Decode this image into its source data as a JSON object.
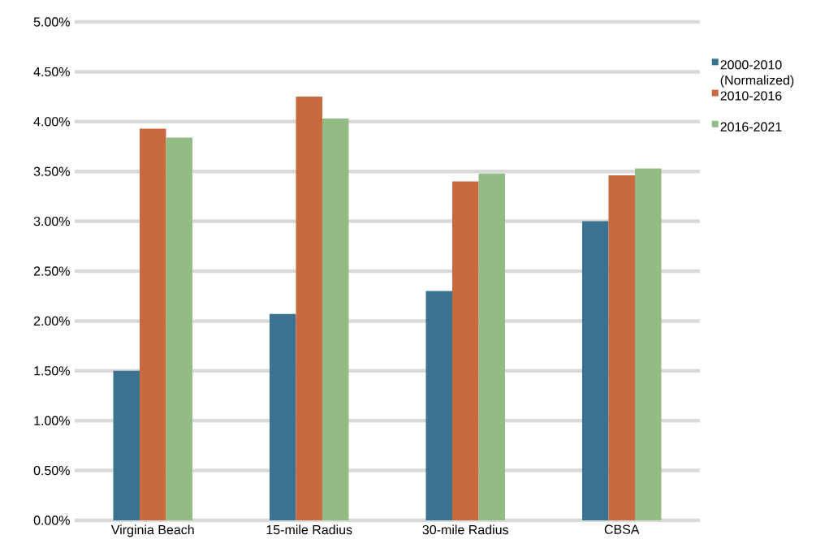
{
  "chart_data": {
    "type": "bar",
    "categories": [
      "Virginia Beach",
      "15-mile Radius",
      "30-mile Radius",
      "CBSA"
    ],
    "series": [
      {
        "name": "2000-2010 (Normalized)",
        "color": "#3b7290",
        "values": [
          1.5,
          2.07,
          2.3,
          3.0
        ]
      },
      {
        "name": "2010-2016",
        "color": "#c8693f",
        "values": [
          3.93,
          4.25,
          3.4,
          3.46
        ]
      },
      {
        "name": "2016-2021",
        "color": "#93bb84",
        "values": [
          3.84,
          4.03,
          3.48,
          3.53
        ]
      }
    ],
    "ylim": [
      0,
      5
    ],
    "yticks": [
      {
        "value": 0,
        "label": "0.00%"
      },
      {
        "value": 0.5,
        "label": "0.50%"
      },
      {
        "value": 1,
        "label": "1.00%"
      },
      {
        "value": 1.5,
        "label": "1.50%"
      },
      {
        "value": 2,
        "label": "2.00%"
      },
      {
        "value": 2.5,
        "label": "2.50%"
      },
      {
        "value": 3,
        "label": "3.00%"
      },
      {
        "value": 3.5,
        "label": "3.50%"
      },
      {
        "value": 4,
        "label": "4.00%"
      },
      {
        "value": 4.5,
        "label": "4.50%"
      },
      {
        "value": 5,
        "label": "5.00%"
      }
    ],
    "grid": "y",
    "legend": "right"
  }
}
